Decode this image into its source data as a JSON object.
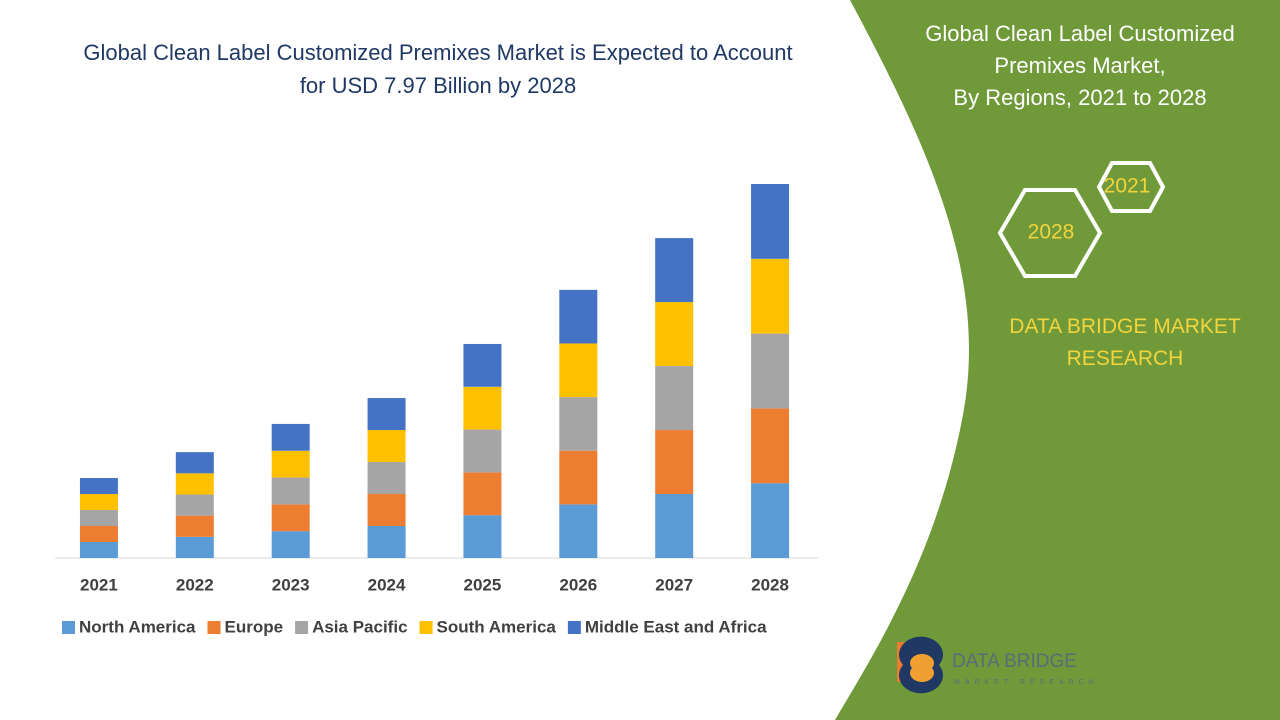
{
  "chart_data": {
    "type": "stacked_bar",
    "title": "Global Clean Label Customized Premixes Market is Expected to Account\nfor USD 7.97 Billion by 2028",
    "categories": [
      "2021",
      "2022",
      "2023",
      "2024",
      "2025",
      "2026",
      "2027",
      "2028"
    ],
    "series": [
      {
        "name": "North America",
        "color": "#5b9bd5",
        "values": [
          0.34,
          0.45,
          0.57,
          0.68,
          0.91,
          1.14,
          1.36,
          1.59
        ]
      },
      {
        "name": "Europe",
        "color": "#ed7d31",
        "values": [
          0.34,
          0.45,
          0.57,
          0.68,
          0.91,
          1.14,
          1.36,
          1.59
        ]
      },
      {
        "name": "Asia Pacific",
        "color": "#a5a5a5",
        "values": [
          0.34,
          0.45,
          0.57,
          0.68,
          0.91,
          1.14,
          1.36,
          1.59
        ]
      },
      {
        "name": "South America",
        "color": "#ffc000",
        "values": [
          0.34,
          0.45,
          0.57,
          0.68,
          0.91,
          1.14,
          1.36,
          1.59
        ]
      },
      {
        "name": "Middle East and Africa",
        "color": "#4472c4",
        "values": [
          0.34,
          0.45,
          0.57,
          0.68,
          0.91,
          1.14,
          1.36,
          1.59
        ]
      }
    ]
  },
  "panel": {
    "title": "Global Clean Label Customized\nPremixes Market,\nBy Regions, 2021 to 2028",
    "hex_start": "2021",
    "hex_end": "2028",
    "brand": "DATA BRIDGE MARKET\nRESEARCH",
    "logo_name": "DATA BRIDGE",
    "logo_sub": "MARKET RESEARCH"
  }
}
